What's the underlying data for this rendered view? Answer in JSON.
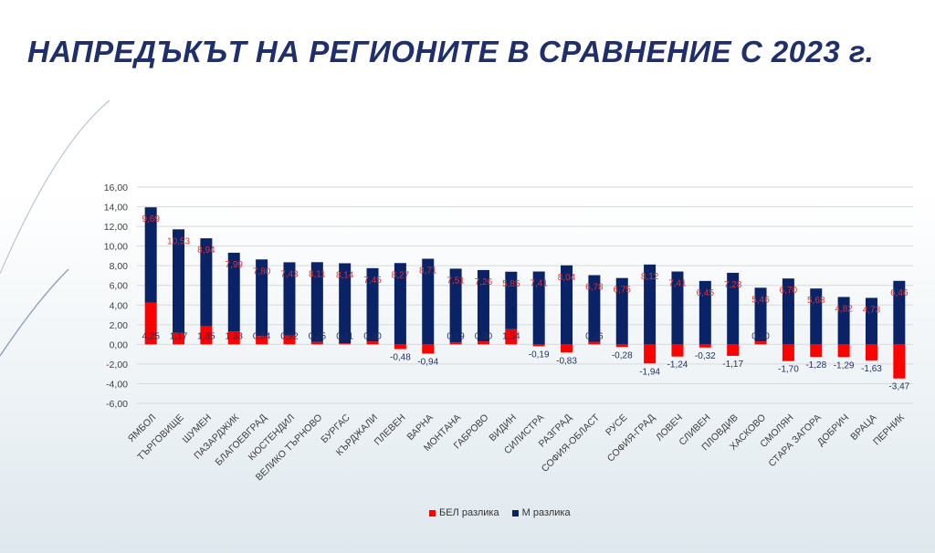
{
  "slide": {
    "title": "НАПРЕДЪКЪТ НА РЕГИОНИТЕ В СРАВНЕНИЕ С 2023 г."
  },
  "chart_data": {
    "type": "bar",
    "stacked": true,
    "categories": [
      "ЯМБОЛ",
      "ТЪРГОВИЩЕ",
      "ШУМЕН",
      "ПАЗАРДЖИК",
      "БЛАГОЕВГРАД",
      "КЮСТЕНДИЛ",
      "ВЕЛИКО ТЪРНОВО",
      "БУРГАС",
      "КЪРДЖАЛИ",
      "ПЛЕВЕН",
      "ВАРНА",
      "МОНТАНА",
      "ГАБРОВО",
      "ВИДИН",
      "СИЛИСТРА",
      "РАЗГРАД",
      "СОФИЯ-ОБЛАСТ",
      "РУСЕ",
      "СОФИЯ-ГРАД",
      "ЛОВЕЧ",
      "СЛИВЕН",
      "ПЛОВДИВ",
      "ХАСКОВО",
      "СМОЛЯН",
      "СТАРА ЗАГОРА",
      "ДОБРИЧ",
      "ВРАЦА",
      "ПЕРНИК"
    ],
    "series": [
      {
        "name": "БЕЛ разлика",
        "color": "#ff0000",
        "values": [
          4.25,
          1.17,
          1.85,
          1.33,
          0.84,
          0.92,
          0.25,
          0.11,
          0.3,
          -0.48,
          -0.94,
          0.19,
          0.3,
          1.54,
          -0.19,
          -0.83,
          0.26,
          -0.28,
          -1.94,
          -1.24,
          -0.32,
          -1.17,
          0.3,
          -1.7,
          -1.28,
          -1.29,
          -1.63,
          -3.47
        ],
        "labels": [
          "4,25",
          "1,17",
          "1,85",
          "1,33",
          "0,84",
          "0,92",
          "0,25",
          "0,11",
          "0,30",
          "-0,48",
          "-0,94",
          "0,19",
          "0,30",
          "1,54",
          "-0,19",
          "-0,83",
          "0,26",
          "-0,28",
          "-1,94",
          "-1,24",
          "-0,32",
          "-1,17",
          "0,30",
          "-1,70",
          "-1,28",
          "-1,29",
          "-1,63",
          "-3,47"
        ]
      },
      {
        "name": "М разлика",
        "color": "#0a2366",
        "values": [
          9.69,
          10.53,
          8.94,
          7.99,
          7.8,
          7.43,
          8.11,
          8.14,
          7.45,
          8.27,
          8.71,
          7.51,
          7.26,
          5.85,
          7.41,
          8.04,
          6.78,
          6.75,
          8.12,
          7.41,
          6.45,
          7.28,
          5.46,
          6.7,
          5.68,
          4.82,
          4.73,
          6.46
        ],
        "labels": [
          "9,69",
          "10,53",
          "8,94",
          "7,99",
          "7,80",
          "7,43",
          "8,11",
          "8,14",
          "7,45",
          "8,27",
          "8,71",
          "7,51",
          "7,26",
          "5,85",
          "7,41",
          "8,04",
          "6,78",
          "6,75",
          "8,12",
          "7,41",
          "6,45",
          "7,28",
          "5,46",
          "6,70",
          "5,68",
          "4,82",
          "4,73",
          "6,46"
        ]
      }
    ],
    "ylim": [
      -6,
      16
    ],
    "yticks": [
      "-6,00",
      "-4,00",
      "-2,00",
      "0,00",
      "2,00",
      "4,00",
      "6,00",
      "8,00",
      "10,00",
      "12,00",
      "14,00",
      "16,00"
    ],
    "ytick_values": [
      -6,
      -4,
      -2,
      0,
      2,
      4,
      6,
      8,
      10,
      12,
      14,
      16
    ],
    "grid": true,
    "legend_position": "bottom"
  }
}
